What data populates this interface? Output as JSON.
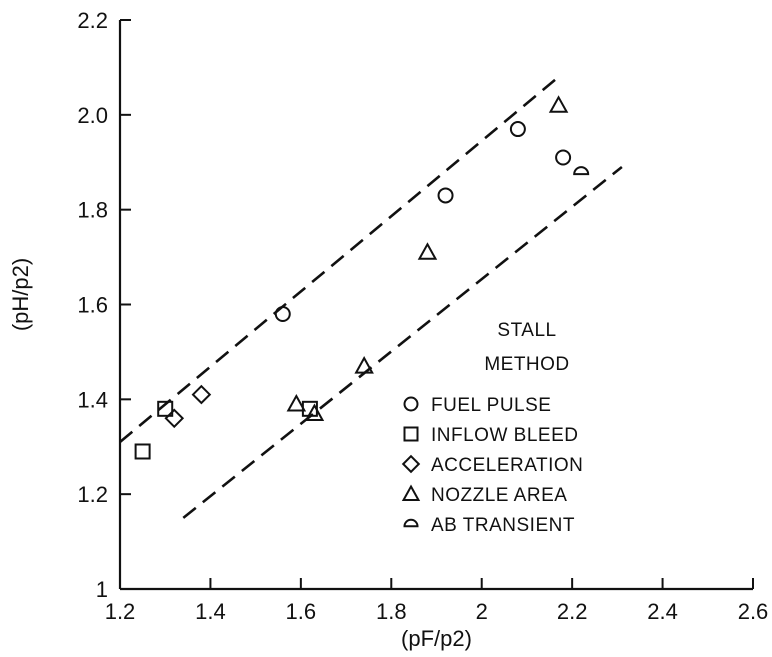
{
  "chart_data": {
    "type": "scatter",
    "xlabel": "(pF/p2)",
    "ylabel": "(pH/p2)",
    "xlim": [
      1.2,
      2.6
    ],
    "ylim": [
      1.0,
      2.2
    ],
    "x_ticks": [
      "1.2",
      "1.4",
      "1.6",
      "1.8",
      "2",
      "2.2",
      "2.4",
      "2.6"
    ],
    "y_ticks": [
      "1",
      "1.2",
      "1.4",
      "1.6",
      "1.8",
      "2.0",
      "2.2"
    ],
    "x_tick_values": [
      1.2,
      1.4,
      1.6,
      1.8,
      2.0,
      2.2,
      2.4,
      2.6
    ],
    "y_tick_values": [
      1.0,
      1.2,
      1.4,
      1.6,
      1.8,
      2.0,
      2.2
    ],
    "grid": false,
    "legend": {
      "title_lines": [
        "STALL",
        "METHOD"
      ],
      "placement": "right"
    },
    "series": [
      {
        "name": "FUEL PULSE",
        "marker": "circle",
        "points": [
          [
            1.56,
            1.58
          ],
          [
            1.92,
            1.83
          ],
          [
            2.08,
            1.97
          ],
          [
            2.18,
            1.91
          ]
        ]
      },
      {
        "name": "INFLOW BLEED",
        "marker": "square",
        "points": [
          [
            1.25,
            1.29
          ],
          [
            1.3,
            1.38
          ],
          [
            1.62,
            1.38
          ]
        ]
      },
      {
        "name": "ACCELERATION",
        "marker": "diamond",
        "points": [
          [
            1.32,
            1.36
          ],
          [
            1.38,
            1.41
          ]
        ]
      },
      {
        "name": "NOZZLE AREA",
        "marker": "triangle",
        "points": [
          [
            1.59,
            1.39
          ],
          [
            1.63,
            1.37
          ],
          [
            1.74,
            1.47
          ],
          [
            1.88,
            1.71
          ],
          [
            2.17,
            2.02
          ]
        ]
      },
      {
        "name": "AB TRANSIENT",
        "marker": "half-circle",
        "points": [
          [
            2.22,
            1.88
          ]
        ]
      }
    ],
    "band_lines": [
      {
        "style": "dashed",
        "points": [
          [
            1.2,
            1.31
          ],
          [
            2.17,
            2.08
          ]
        ]
      },
      {
        "style": "dashed",
        "points": [
          [
            1.34,
            1.15
          ],
          [
            2.31,
            1.89
          ]
        ]
      }
    ]
  }
}
